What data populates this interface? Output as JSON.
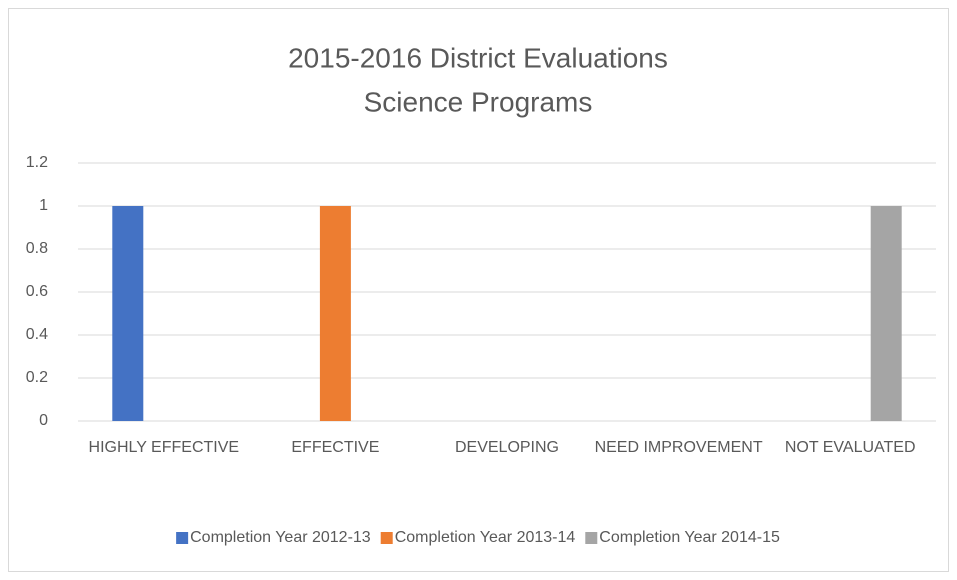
{
  "chart_data": {
    "type": "bar",
    "title": "2015-2016 District Evaluations",
    "subtitle": "Science Programs",
    "categories": [
      "HIGHLY EFFECTIVE",
      "EFFECTIVE",
      "DEVELOPING",
      "NEED IMPROVEMENT",
      "NOT EVALUATED"
    ],
    "series": [
      {
        "name": "Completion Year 2012-13",
        "color": "#4472c4",
        "values": [
          1,
          0,
          0,
          0,
          0
        ]
      },
      {
        "name": "Completion Year 2013-14",
        "color": "#ed7d31",
        "values": [
          0,
          1,
          0,
          0,
          0
        ]
      },
      {
        "name": "Completion Year 2014-15",
        "color": "#a5a5a5",
        "values": [
          0,
          0,
          0,
          0,
          1
        ]
      }
    ],
    "ylim": [
      0,
      1.2
    ],
    "yticks": [
      0,
      0.2,
      0.4,
      0.6,
      0.8,
      1,
      1.2
    ],
    "grid": true,
    "legend": "bottom"
  }
}
